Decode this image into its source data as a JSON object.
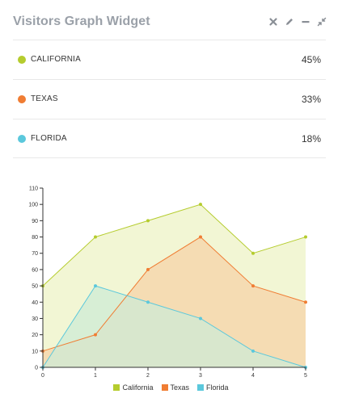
{
  "widget": {
    "title": "Visitors Graph Widget",
    "tools": [
      {
        "name": "close-icon"
      },
      {
        "name": "pencil-icon"
      },
      {
        "name": "minimize-icon"
      },
      {
        "name": "compress-icon"
      }
    ]
  },
  "visitors": [
    {
      "label": "CALIFORNIA",
      "percent": "45%",
      "color": "#b5cc2e"
    },
    {
      "label": "TEXAS",
      "percent": "33%",
      "color": "#f07d33"
    },
    {
      "label": "FLORIDA",
      "percent": "18%",
      "color": "#5bc8dc"
    }
  ],
  "chart_data": {
    "type": "area",
    "x": [
      0,
      1,
      2,
      3,
      4,
      5
    ],
    "x_ticks": [
      "0",
      "1",
      "2",
      "3",
      "4",
      "5"
    ],
    "y_ticks": [
      "0",
      "10",
      "20",
      "30",
      "40",
      "50",
      "60",
      "70",
      "80",
      "90",
      "100",
      "110"
    ],
    "ylim": [
      0,
      110
    ],
    "xlim": [
      0,
      5
    ],
    "legend_position": "bottom",
    "series": [
      {
        "name": "California",
        "values": [
          50,
          80,
          90,
          100,
          70,
          80
        ],
        "color": "#b5cc2e",
        "fill": "#eef3c6"
      },
      {
        "name": "Texas",
        "values": [
          10,
          20,
          60,
          80,
          50,
          40
        ],
        "color": "#f07d33",
        "fill": "#f5d3a8"
      },
      {
        "name": "Florida",
        "values": [
          0,
          50,
          40,
          30,
          10,
          0
        ],
        "color": "#5bc8dc",
        "fill": "#cdebd6"
      }
    ]
  }
}
